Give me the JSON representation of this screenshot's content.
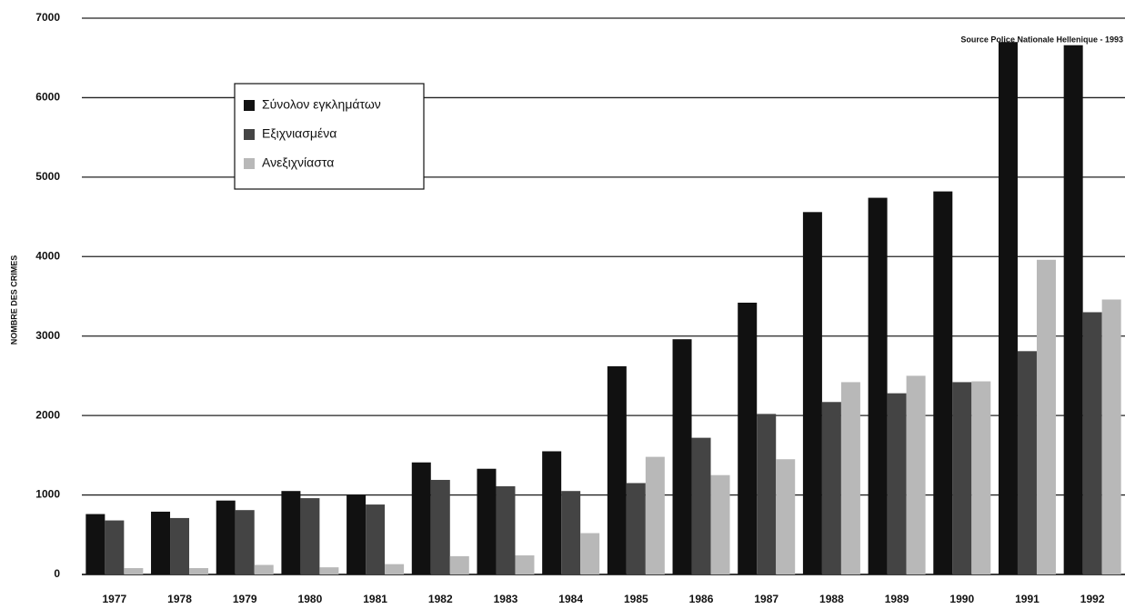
{
  "chart_data": {
    "type": "bar",
    "ylabel": "NOMBRE DES CRIMES",
    "annotation": "Source Police Nationale Hellenique - 1993",
    "categories": [
      "1977",
      "1978",
      "1979",
      "1980",
      "1981",
      "1982",
      "1983",
      "1984",
      "1985",
      "1986",
      "1987",
      "1988",
      "1989",
      "1990",
      "1991",
      "1992"
    ],
    "series": [
      {
        "name": "Σύνολον εγκλημάτων",
        "color": "#111111",
        "values": [
          760,
          790,
          930,
          1050,
          1000,
          1410,
          1330,
          1550,
          2620,
          2960,
          3420,
          4560,
          4740,
          4820,
          6700,
          6660
        ]
      },
      {
        "name": "Εξιχνιασμένα",
        "color": "#444444",
        "values": [
          680,
          710,
          810,
          960,
          880,
          1190,
          1110,
          1050,
          1150,
          1720,
          2020,
          2170,
          2280,
          2420,
          2810,
          3300
        ]
      },
      {
        "name": "Ανεξιχνίαστα",
        "color": "#b8b8b8",
        "values": [
          80,
          80,
          120,
          90,
          130,
          230,
          240,
          520,
          1480,
          1250,
          1450,
          2420,
          2500,
          2430,
          3960,
          3460
        ]
      }
    ],
    "ylim": [
      0,
      7000
    ],
    "yticks": [
      0,
      1000,
      2000,
      3000,
      4000,
      5000,
      6000,
      7000
    ],
    "grid": true,
    "legend": "upper left"
  }
}
